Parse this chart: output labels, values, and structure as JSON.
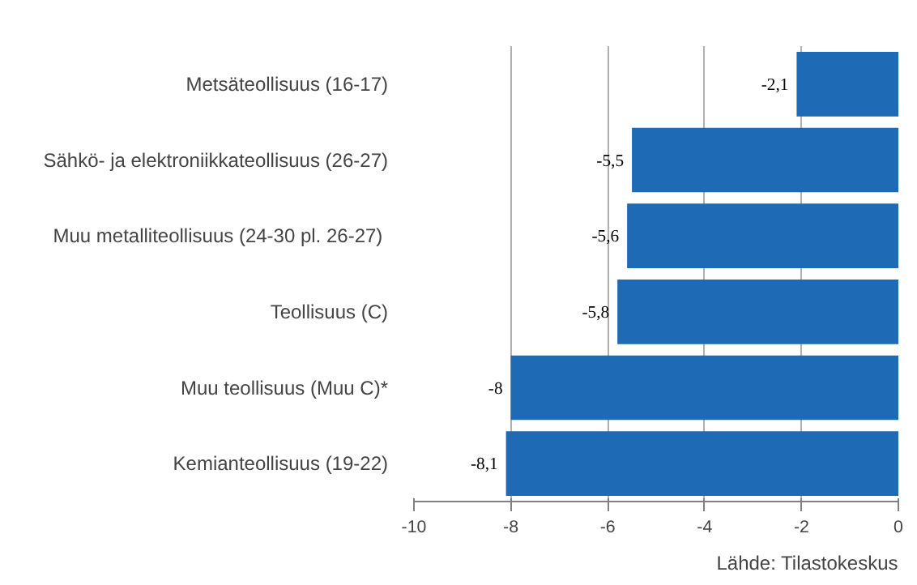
{
  "chart_data": {
    "type": "bar",
    "orientation": "horizontal",
    "categories": [
      "Metsäteollisuus (16-17)",
      "Sähkö- ja elektroniikkateollisuus (26-27)",
      "Muu metalliteollisuus (24-30  pl. 26-27)",
      "Teollisuus (C)",
      "Muu teollisuus (Muu C)*",
      "Kemianteollisuus (19-22)"
    ],
    "values": [
      -2.1,
      -5.5,
      -5.6,
      -5.8,
      -8,
      -8.1
    ],
    "value_labels": [
      "-2,1",
      "-5,5",
      "-5,6",
      "-5,8",
      "-8",
      "-8,1"
    ],
    "color": "#1f6ab4",
    "xlim": [
      -10,
      0
    ],
    "xticks": [
      -10,
      -8,
      -6,
      -4,
      -2,
      0
    ],
    "grid": "x",
    "annotations": [
      "Lähde: Tilastokeskus"
    ]
  }
}
